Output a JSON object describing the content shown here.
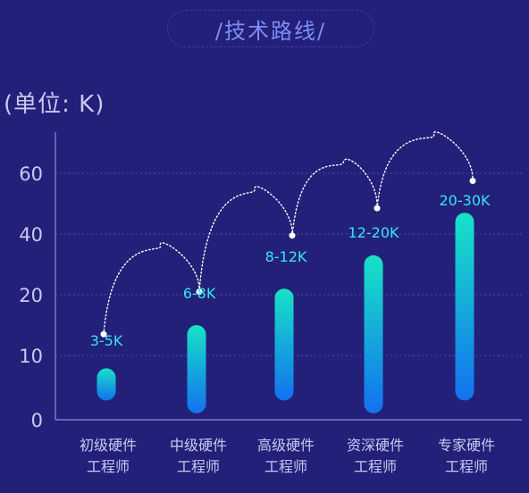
{
  "header": {
    "title": "/技术路线/",
    "unit": "(单位: K)"
  },
  "colors": {
    "background": "#232079",
    "bar_top": "#17e3c6",
    "bar_bottom": "#1371f0",
    "label_accent": "#35e6ef",
    "axis": "#8a8fd6",
    "grid": "#4a4ea8"
  },
  "chart_data": {
    "type": "bar",
    "title": "/技术路线/",
    "ylabel": "(单位: K)",
    "y_ticks": [
      "0",
      "10",
      "20",
      "40",
      "60"
    ],
    "categories": [
      [
        "初级硬件",
        "工程师"
      ],
      [
        "中级硬件",
        "工程师"
      ],
      [
        "高级硬件",
        "工程师"
      ],
      [
        "资深硬件",
        "工程师"
      ],
      [
        "专家硬件",
        "工程师"
      ]
    ],
    "data_labels": [
      "3-5K",
      "6-8K",
      "8-12K",
      "12-20K",
      "20-30K"
    ],
    "bars": [
      {
        "low": 3,
        "high": 8
      },
      {
        "low": 1,
        "high": 15
      },
      {
        "low": 3,
        "high": 22
      },
      {
        "low": 1,
        "high": 33
      },
      {
        "low": 3,
        "high": 47
      }
    ],
    "points": [
      13.5,
      21,
      39.5,
      48.5,
      57.5
    ],
    "grid": true
  }
}
